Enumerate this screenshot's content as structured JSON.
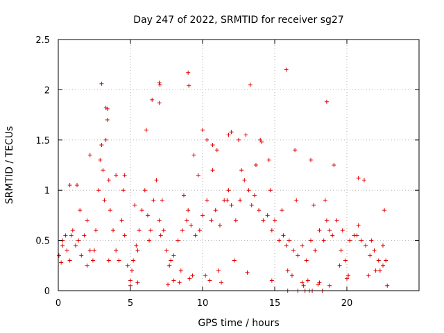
{
  "chart_data": {
    "type": "scatter",
    "title": "Day 247 of 2022, SRMTID for receiver sg27",
    "xlabel": "GPS time / hours",
    "ylabel": "SRMTID / TECUs",
    "xlim": [
      0,
      25
    ],
    "ylim": [
      0,
      2.5
    ],
    "xticks": [
      "0",
      "5",
      "10",
      "15",
      "20"
    ],
    "yticks": [
      "0",
      "0.5",
      "1",
      "1.5",
      "2",
      "2.5"
    ],
    "grid": true,
    "marker": "plus",
    "color": "#e00000",
    "series": [
      {
        "name": "SRMTID",
        "x": [
          0.05,
          0.2,
          0.3,
          0.5,
          0.6,
          0.8,
          1.0,
          1.2,
          1.4,
          1.6,
          1.8,
          2.0,
          2.2,
          2.4,
          2.6,
          2.8,
          2.9,
          3.0,
          3.1,
          3.2,
          3.3,
          3.4,
          3.5,
          3.6,
          3.8,
          4.0,
          4.2,
          4.4,
          4.6,
          4.8,
          5.0,
          5.1,
          5.2,
          5.4,
          5.6,
          5.8,
          6.0,
          6.2,
          6.4,
          6.6,
          6.8,
          7.0,
          7.1,
          7.2,
          7.3,
          7.5,
          7.8,
          8.0,
          8.3,
          8.6,
          8.9,
          9.0,
          9.2,
          9.5,
          9.8,
          10.0,
          10.3,
          10.6,
          10.9,
          11.2,
          11.5,
          11.8,
          12.0,
          12.3,
          12.6,
          12.9,
          13.2,
          13.4,
          13.6,
          13.9,
          14.2,
          14.5,
          14.8,
          15.0,
          15.3,
          15.6,
          15.8,
          16.0,
          16.3,
          16.6,
          16.9,
          17.2,
          17.5,
          17.8,
          18.1,
          18.4,
          18.6,
          18.8,
          19.0,
          19.3,
          19.6,
          19.9,
          20.2,
          20.5,
          20.8,
          21.0,
          21.3,
          21.6,
          21.9,
          22.2,
          22.5,
          22.7,
          9.0,
          9.05,
          7.0,
          7.05,
          3.0,
          3.3,
          3.4,
          6.5,
          13.3,
          15.8,
          18.6,
          11.8,
          12.0,
          14.0,
          14.1,
          16.4,
          17.5,
          20.8,
          6.1,
          7.0,
          4.6,
          10.0,
          10.3,
          10.7,
          12.5,
          13.0,
          14.6,
          2.2,
          1.3,
          0.8,
          4.0,
          19.1,
          21.2,
          22.6,
          0.3,
          0.9,
          2.0,
          5.5,
          8.5,
          19.5,
          20.1,
          22.0,
          8.0,
          9.1,
          10.2,
          11.1,
          12.2,
          13.1,
          15.9,
          16.2,
          16.9,
          17.3,
          18.1,
          20.0,
          21.5,
          22.3,
          1.5,
          2.5,
          3.5,
          4.5,
          5.3,
          6.3,
          7.7,
          8.7,
          9.7,
          10.7,
          11.7,
          12.7,
          13.7,
          14.7,
          15.5,
          16.5,
          17.7,
          18.5,
          19.7,
          20.7,
          21.7,
          22.5,
          5.0,
          5.5,
          7.6,
          8.4,
          9.3,
          10.5,
          11.3,
          14.8,
          17.0,
          18.0,
          18.8,
          22.8,
          15.9,
          16.6,
          17.1,
          17.4,
          17.6,
          18.3,
          9.4,
          11.0
        ],
        "y": [
          0.35,
          0.28,
          0.45,
          0.55,
          0.4,
          0.3,
          0.6,
          0.45,
          0.5,
          0.35,
          0.55,
          0.7,
          0.4,
          0.3,
          0.6,
          1.0,
          1.3,
          1.45,
          1.2,
          0.9,
          1.5,
          1.7,
          1.1,
          0.8,
          0.6,
          0.4,
          0.3,
          0.7,
          0.55,
          0.25,
          0.1,
          0.2,
          0.3,
          0.45,
          0.6,
          0.8,
          1.0,
          0.75,
          0.6,
          0.9,
          1.1,
          0.7,
          0.55,
          0.9,
          0.6,
          0.4,
          0.3,
          0.35,
          0.5,
          0.6,
          0.7,
          0.8,
          0.65,
          0.55,
          0.6,
          0.75,
          0.9,
          0.7,
          0.8,
          0.65,
          0.9,
          1.0,
          0.85,
          0.7,
          0.9,
          1.1,
          1.0,
          0.85,
          0.95,
          0.8,
          0.7,
          0.75,
          0.6,
          0.7,
          0.5,
          0.55,
          0.45,
          0.5,
          0.4,
          0.35,
          0.45,
          0.3,
          0.5,
          0.4,
          0.6,
          0.5,
          0.7,
          0.6,
          0.55,
          0.7,
          0.4,
          0.3,
          0.5,
          0.55,
          0.65,
          0.5,
          0.45,
          0.35,
          0.4,
          0.3,
          0.25,
          0.3,
          2.17,
          2.04,
          2.07,
          2.05,
          2.06,
          1.82,
          1.81,
          1.9,
          2.05,
          2.2,
          1.88,
          1.55,
          1.58,
          1.5,
          1.48,
          1.4,
          1.3,
          1.12,
          1.6,
          1.87,
          1.15,
          1.6,
          1.5,
          1.45,
          1.5,
          1.55,
          1.3,
          1.35,
          1.05,
          1.05,
          1.15,
          1.25,
          1.1,
          0.8,
          0.5,
          0.55,
          0.25,
          0.4,
          0.2,
          0.25,
          0.15,
          0.2,
          0.1,
          0.12,
          0.15,
          0.2,
          0.3,
          0.18,
          0.2,
          0.15,
          0.08,
          0.1,
          0.08,
          0.12,
          0.15,
          0.2,
          0.8,
          0.4,
          0.3,
          1.0,
          0.85,
          0.5,
          0.25,
          0.95,
          1.15,
          1.2,
          0.9,
          1.2,
          1.25,
          1.0,
          0.8,
          0.9,
          0.85,
          0.9,
          0.6,
          0.55,
          0.5,
          0.45,
          0.05,
          0.08,
          0.06,
          0.08,
          0.15,
          0.1,
          0.08,
          0.1,
          0.05,
          0.06,
          0.05,
          0.05,
          0.0,
          0.0,
          0.0,
          0.0,
          0.0,
          0.0,
          1.35,
          1.4
        ]
      }
    ]
  }
}
